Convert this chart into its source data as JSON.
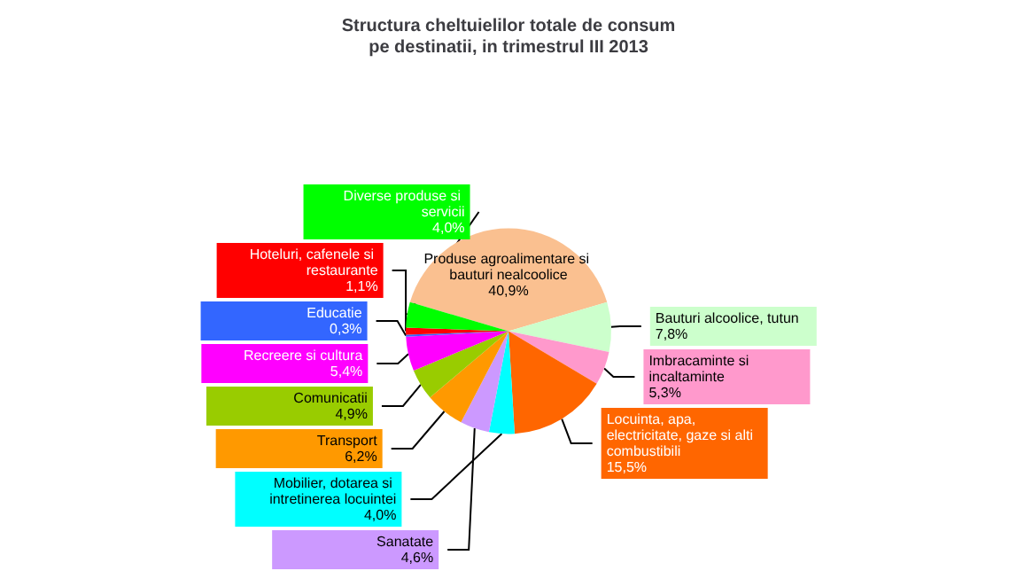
{
  "chart_data": {
    "type": "pie",
    "title": "Structura cheltuielilor totale de consum\npe destinatii, in trimestrul III 2013",
    "categories": [
      "Produse agroalimentare si bauturi nealcoolice",
      "Bauturi alcoolice, tutun",
      "Imbracaminte si incaltaminte",
      "Locuinta, apa, electricitate, gaze si alti combustibili",
      "Mobilier, dotarea si intretinerea locuintei",
      "Sanatate",
      "Transport",
      "Comunicatii",
      "Recreere si cultura",
      "Educatie",
      "Hoteluri, cafenele si restaurante",
      "Diverse produse si servicii"
    ],
    "values": [
      40.9,
      7.8,
      5.3,
      15.5,
      4.0,
      4.6,
      6.2,
      4.9,
      5.4,
      0.3,
      1.1,
      4.0
    ],
    "value_labels": [
      "40,9%",
      "7,8%",
      "5,3%",
      "15,5%",
      "4,0%",
      "4,6%",
      "6,2%",
      "4,9%",
      "5,4%",
      "0,3%",
      "1,1%",
      "4,0%"
    ],
    "colors": [
      "#fac090",
      "#ccffcc",
      "#ff99cc",
      "#ff6600",
      "#00ffff",
      "#cc99ff",
      "#ff9900",
      "#99cc00",
      "#ff00ff",
      "#3366ff",
      "#ff0000",
      "#00ff00"
    ],
    "legend": false
  }
}
